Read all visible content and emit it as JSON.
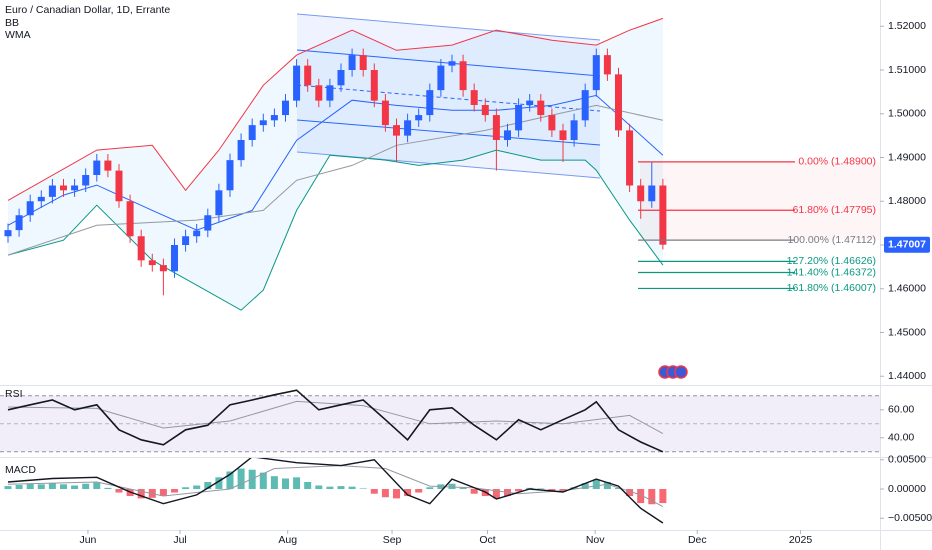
{
  "chart_data": [
    {
      "type": "candlestick",
      "title": "Euro / Canadian Dollar, 1D, Errante",
      "up_color": "#2962ff",
      "down_color": "#f23645",
      "xlim": [
        -0.72,
        78.56
      ],
      "xticks": [
        {
          "value": 7.2,
          "label": "Jun"
        },
        {
          "value": 15.5,
          "label": "Jul"
        },
        {
          "value": 25.2,
          "label": "Aug"
        },
        {
          "value": 34.6,
          "label": "Sep"
        },
        {
          "value": 43.2,
          "label": "Oct"
        },
        {
          "value": 52.9,
          "label": "Nov"
        },
        {
          "value": 62.1,
          "label": "Dec"
        },
        {
          "value": 71.4,
          "label": "2025"
        }
      ],
      "ylim": [
        1.438,
        1.526
      ],
      "yticks": [
        {
          "value": 1.52,
          "label": "1.52000"
        },
        {
          "value": 1.51,
          "label": "1.51000"
        },
        {
          "value": 1.5,
          "label": "1.50000"
        },
        {
          "value": 1.49,
          "label": "1.49000"
        },
        {
          "value": 1.48,
          "label": "1.48000"
        },
        {
          "value": 1.47,
          "label": "1.47000"
        },
        {
          "value": 1.46,
          "label": "1.46000"
        },
        {
          "value": 1.45,
          "label": "1.45000"
        },
        {
          "value": 1.44,
          "label": "1.44000"
        }
      ],
      "open": [
        1.472,
        1.4734,
        1.4768,
        1.48,
        1.481,
        1.4836,
        1.4825,
        1.4836,
        1.486,
        1.4893,
        1.487,
        1.48,
        1.472,
        1.4665,
        1.4654,
        1.464,
        1.47,
        1.472,
        1.4733,
        1.4768,
        1.4825,
        1.4894,
        1.494,
        1.4974,
        1.4985,
        1.4997,
        1.503,
        1.511,
        1.5065,
        1.503,
        1.5065,
        1.51,
        1.5134,
        1.51,
        1.503,
        1.4974,
        1.495,
        1.4985,
        1.4997,
        1.5054,
        1.511,
        1.512,
        1.5054,
        1.502,
        1.4997,
        1.494,
        1.4962,
        1.502,
        1.503,
        1.4997,
        1.4962,
        1.494,
        1.4985,
        1.5054,
        1.5134,
        1.509,
        1.4962,
        1.4836,
        1.48,
        1.4836
      ],
      "high": [
        1.4749,
        1.4783,
        1.4815,
        1.4825,
        1.4851,
        1.4851,
        1.4851,
        1.4875,
        1.4908,
        1.4908,
        1.4885,
        1.4815,
        1.4735,
        1.468,
        1.4669,
        1.4715,
        1.4735,
        1.4748,
        1.4783,
        1.484,
        1.4909,
        1.4955,
        1.4989,
        1.5,
        1.5012,
        1.5045,
        1.5125,
        1.5125,
        1.508,
        1.508,
        1.5115,
        1.5149,
        1.5149,
        1.5115,
        1.5045,
        1.4989,
        1.5,
        1.5012,
        1.5069,
        1.5125,
        1.5135,
        1.5135,
        1.5069,
        1.5035,
        1.5012,
        1.4977,
        1.5035,
        1.5045,
        1.5045,
        1.5012,
        1.4977,
        1.5,
        1.5069,
        1.5149,
        1.5149,
        1.5105,
        1.4977,
        1.4851,
        1.489,
        1.4851
      ],
      "low": [
        1.4705,
        1.4719,
        1.4753,
        1.4785,
        1.4795,
        1.481,
        1.481,
        1.4821,
        1.4845,
        1.4855,
        1.4785,
        1.4705,
        1.465,
        1.4639,
        1.4585,
        1.4625,
        1.4685,
        1.4705,
        1.4718,
        1.4753,
        1.481,
        1.4879,
        1.4925,
        1.4959,
        1.497,
        1.4982,
        1.5015,
        1.505,
        1.5015,
        1.5015,
        1.505,
        1.5085,
        1.5085,
        1.5015,
        1.4959,
        1.489,
        1.4935,
        1.497,
        1.4982,
        1.5039,
        1.5095,
        1.5039,
        1.5005,
        1.4982,
        1.487,
        1.4925,
        1.4947,
        1.5005,
        1.4982,
        1.4947,
        1.489,
        1.4925,
        1.497,
        1.5039,
        1.5075,
        1.4947,
        1.4821,
        1.476,
        1.4785,
        1.469
      ],
      "close": [
        1.4734,
        1.4768,
        1.48,
        1.481,
        1.4836,
        1.4825,
        1.4836,
        1.486,
        1.4893,
        1.487,
        1.48,
        1.472,
        1.4665,
        1.4654,
        1.464,
        1.47,
        1.472,
        1.4733,
        1.4768,
        1.4825,
        1.4894,
        1.494,
        1.4974,
        1.4985,
        1.4997,
        1.503,
        1.511,
        1.5065,
        1.503,
        1.5065,
        1.51,
        1.5134,
        1.51,
        1.503,
        1.4974,
        1.495,
        1.4985,
        1.4997,
        1.5054,
        1.511,
        1.512,
        1.5054,
        1.502,
        1.4997,
        1.494,
        1.4962,
        1.502,
        1.503,
        1.4997,
        1.4962,
        1.494,
        1.4985,
        1.5054,
        1.5134,
        1.509,
        1.4962,
        1.4836,
        1.48,
        1.4836,
        1.47007
      ],
      "indicators": [
        {
          "name": "BB",
          "fill": "#2196f3",
          "bands": [
            {
              "color": "#f23645",
              "x": [
                0,
                8,
                13,
                16,
                19,
                23,
                26,
                31,
                35,
                40,
                44,
                49,
                53,
                56,
                59
              ],
              "values": [
                1.4802,
                1.4917,
                1.4928,
                1.4825,
                1.4917,
                1.5065,
                1.5134,
                1.5191,
                1.5145,
                1.5157,
                1.5191,
                1.5168,
                1.5157,
                1.5191,
                1.5218
              ]
            },
            {
              "color": "#2962ff",
              "x": [
                0,
                5,
                8,
                13,
                17,
                22,
                26,
                31,
                35,
                40,
                44,
                49,
                53,
                56,
                59
              ],
              "values": [
                1.4745,
                1.4814,
                1.4837,
                1.4779,
                1.4734,
                1.4779,
                1.4939,
                1.5031,
                1.5019,
                1.5008,
                1.5008,
                1.5019,
                1.5042,
                1.4974,
                1.4905
              ]
            },
            {
              "color": "#089981",
              "x": [
                0,
                5,
                8,
                13,
                17,
                21,
                23,
                26,
                29,
                34,
                37,
                41,
                44,
                48,
                52,
                53,
                56,
                59
              ],
              "values": [
                1.4677,
                1.4711,
                1.4791,
                1.4665,
                1.4608,
                1.4551,
                1.4597,
                1.4779,
                1.4905,
                1.4894,
                1.4882,
                1.4894,
                1.4917,
                1.4894,
                1.4894,
                1.4871,
                1.4757,
                1.4654
              ]
            }
          ]
        },
        {
          "name": "WMA",
          "color": "#9598a1",
          "x": [
            0,
            8,
            17,
            23,
            26,
            31,
            35,
            43,
            49,
            53,
            59
          ],
          "values": [
            1.4677,
            1.4745,
            1.4757,
            1.4779,
            1.4848,
            1.4882,
            1.4928,
            1.4962,
            1.4997,
            1.5019,
            1.4985
          ]
        }
      ],
      "fib_levels": [
        {
          "label": "0.00% (1.48900)",
          "value": 1.489,
          "color": "#f23645"
        },
        {
          "label": "61.80% (1.47795)",
          "value": 1.47795,
          "color": "#f23645"
        },
        {
          "label": "100.00% (1.47112)",
          "value": 1.47112,
          "color": "#787b86"
        },
        {
          "label": "127.20% (1.46626)",
          "value": 1.46626,
          "color": "#089981"
        },
        {
          "label": "141.40% (1.46372)",
          "value": 1.46372,
          "color": "#089981"
        },
        {
          "label": "161.80% (1.46007)",
          "value": 1.46007,
          "color": "#089981"
        }
      ],
      "last_price": 1.47007
    },
    {
      "type": "line",
      "title": "RSI",
      "color": "#131722",
      "ylim": [
        27,
        77
      ],
      "yticks": [
        {
          "value": 60,
          "label": "60.00"
        },
        {
          "value": 40,
          "label": "40.00"
        }
      ],
      "levels": [
        30,
        50,
        70
      ],
      "band_color": "#7e57c2",
      "x": [
        0,
        2,
        4,
        6,
        8,
        10,
        12,
        14,
        16,
        18,
        20,
        22,
        24,
        26,
        28,
        30,
        32,
        34,
        36,
        38,
        40,
        42,
        44,
        46,
        48,
        50,
        52,
        53,
        55,
        57,
        59
      ],
      "values": [
        60,
        63.6,
        67,
        60,
        63.6,
        45.7,
        38.6,
        35,
        45.7,
        49,
        63.6,
        67,
        70.7,
        74,
        60,
        63.6,
        67,
        52.9,
        38.6,
        60,
        61.4,
        49,
        38.6,
        52.9,
        45.7,
        52.9,
        60,
        65.7,
        45.7,
        37,
        30
      ],
      "ma": {
        "color": "#9598a1",
        "x": [
          0,
          8,
          14,
          20,
          26,
          32,
          38,
          44,
          50,
          56,
          59
        ],
        "values": [
          62,
          61,
          47,
          52,
          66,
          63,
          50,
          52,
          50,
          56,
          43
        ]
      }
    },
    {
      "type": "macd",
      "title": "MACD",
      "ylim": [
        -0.007,
        0.0053
      ],
      "yticks": [
        {
          "value": 0.005,
          "label": "0.00500"
        },
        {
          "value": 0,
          "label": "0.00000"
        },
        {
          "value": -0.005,
          "label": "−0.00500"
        }
      ],
      "up_color": "#26a69a",
      "down_color": "#f23645",
      "histogram": [
        0.0005,
        0.0007,
        0.0009,
        0.0008,
        0.001,
        0.0008,
        0.0006,
        0.0009,
        0.0011,
        0.0002,
        -0.0006,
        -0.0012,
        -0.0016,
        -0.0015,
        -0.0012,
        -0.0006,
        0.0003,
        0.0006,
        0.0012,
        0.002,
        0.003,
        0.0035,
        0.0033,
        0.0028,
        0.0022,
        0.0018,
        0.002,
        0.0012,
        0.0006,
        0.0004,
        0.0005,
        0.0004,
        0.0001,
        -0.0008,
        -0.0014,
        -0.0016,
        -0.0012,
        -0.0006,
        0.0003,
        0.0008,
        0.0009,
        0.0002,
        -0.0008,
        -0.0012,
        -0.0016,
        -0.0012,
        -0.0004,
        0.0002,
        0.0001,
        -0.0003,
        -0.0004,
        0.0003,
        0.001,
        0.0016,
        0.0012,
        0.0002,
        -0.0012,
        -0.0024,
        -0.0026,
        -0.0024
      ],
      "macd": {
        "color": "#131722",
        "x": [
          0,
          4,
          8,
          11,
          14,
          17,
          20,
          22,
          26,
          30,
          33,
          36,
          38,
          40,
          43,
          44,
          47,
          50,
          53,
          55,
          57,
          59
        ],
        "values": [
          0.0012,
          0.0018,
          0.002,
          -0.0005,
          -0.0025,
          -0.001,
          0.0025,
          0.0055,
          0.0045,
          0.004,
          0.005,
          -0.001,
          -0.0025,
          0.0017,
          -0.0005,
          -0.0017,
          0,
          -0.0005,
          0.0017,
          0.0005,
          -0.0033,
          -0.0058
        ]
      },
      "signal": {
        "color": "#9598a1",
        "x": [
          0,
          8,
          14,
          20,
          24,
          30,
          34,
          38,
          42,
          46,
          50,
          54,
          57,
          59
        ],
        "values": [
          0.0008,
          0.0012,
          -0.0012,
          0,
          0.0035,
          0.004,
          0.0035,
          0.0005,
          0.0002,
          -0.0008,
          -0.0003,
          0.0008,
          -0.001,
          -0.003
        ]
      }
    }
  ]
}
